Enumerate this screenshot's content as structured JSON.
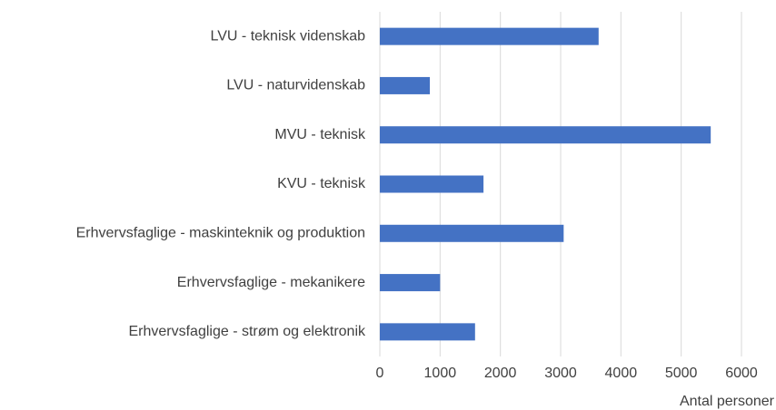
{
  "chart_data": {
    "type": "bar",
    "orientation": "horizontal",
    "categories": [
      "LVU - teknisk videnskab",
      "LVU - naturvidenskab",
      "MVU - teknisk",
      "KVU - teknisk",
      "Erhvervsfaglige - maskinteknik og produktion",
      "Erhvervsfaglige - mekanikere",
      "Erhvervsfaglige - strøm og elektronik"
    ],
    "values": [
      3630,
      830,
      5490,
      1720,
      3050,
      1000,
      1580
    ],
    "color": "#4472c4",
    "xlabel": "Antal personer",
    "xlim": [
      0,
      6000
    ],
    "xticks": [
      0,
      1000,
      2000,
      3000,
      4000,
      5000,
      6000
    ],
    "grid": true
  }
}
